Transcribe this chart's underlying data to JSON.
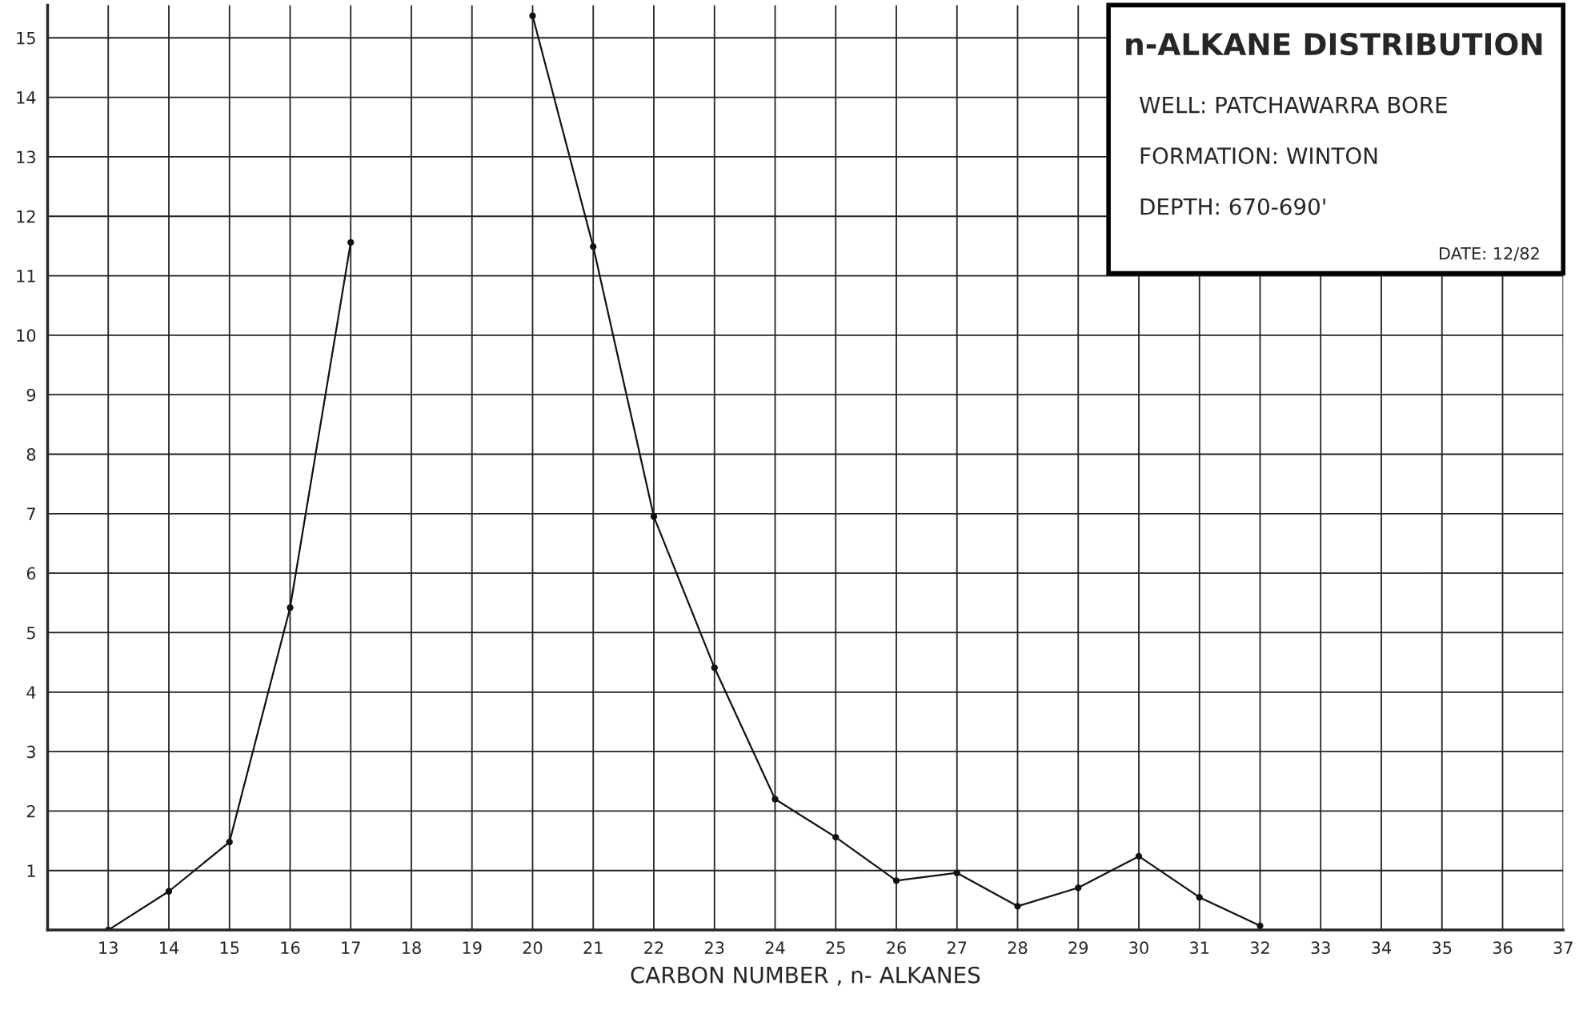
{
  "chart_data": {
    "type": "line",
    "xlabel": "CARBON NUMBER , n- ALKANES",
    "x": [
      13,
      14,
      15,
      16,
      17,
      18,
      19,
      20,
      21,
      22,
      23,
      24,
      25,
      26,
      27,
      28,
      29,
      30,
      31,
      32
    ],
    "values": [
      0,
      0.65,
      1.48,
      5.42,
      11.56,
      null,
      null,
      15.37,
      11.49,
      6.95,
      4.41,
      2.2,
      1.56,
      0.83,
      0.96,
      0.4,
      0.71,
      1.24,
      0.55,
      0.07
    ],
    "color": "#111111",
    "marker": "circle",
    "line_style": "solid",
    "xlim": [
      12,
      37
    ],
    "xticks": [
      13,
      14,
      15,
      16,
      17,
      18,
      19,
      20,
      21,
      22,
      23,
      24,
      25,
      26,
      27,
      28,
      29,
      30,
      31,
      32,
      33,
      34,
      35,
      36,
      37
    ],
    "ylim": [
      0,
      15.55
    ],
    "yticks": [
      1,
      2,
      3,
      4,
      5,
      6,
      7,
      8,
      9,
      10,
      11,
      12,
      13,
      14,
      15
    ],
    "grid": true,
    "legend": false,
    "annotations": [
      "n-ALKANE DISTRIBUTION",
      "WELL: PATCHAWARRA BORE",
      "FORMATION: WINTON",
      "DEPTH: 670-690'",
      "DATE: 12/82"
    ]
  }
}
